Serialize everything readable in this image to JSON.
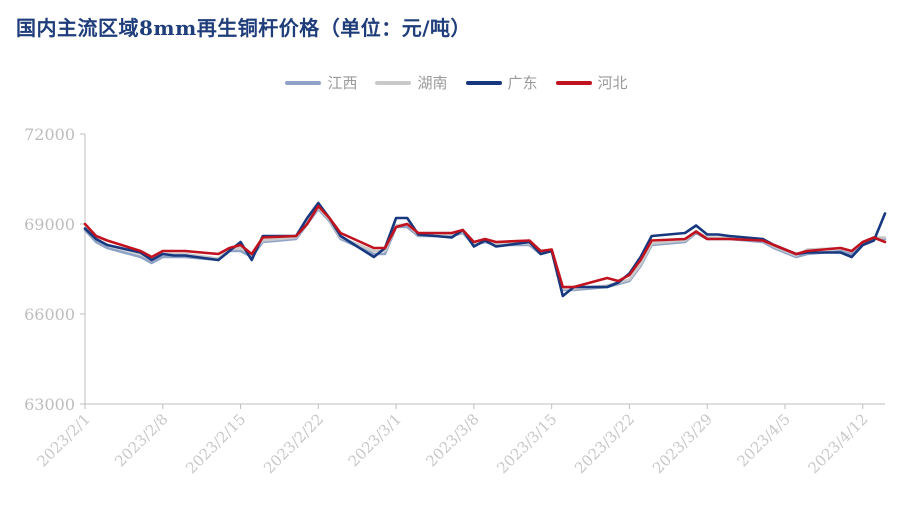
{
  "chart_data": {
    "type": "line",
    "title": "国内主流区域8mm再生铜杆价格（单位：元/吨）",
    "ylim": [
      63000,
      72000
    ],
    "yticks": [
      63000,
      66000,
      69000,
      72000
    ],
    "ytick_labels": [
      "63000",
      "66000",
      "69000",
      "72000"
    ],
    "xlim": [
      "2023/2/1",
      "2023/4/14"
    ],
    "xticks": [
      "2023/2/1",
      "2023/2/8",
      "2023/2/15",
      "2023/2/22",
      "2023/3/1",
      "2023/3/8",
      "2023/3/15",
      "2023/3/22",
      "2023/3/29",
      "2023/4/5",
      "2023/4/12"
    ],
    "legend": "top-center",
    "grid": false,
    "series": [
      {
        "name": "江西",
        "color": "#8fa3c6",
        "points": [
          [
            "2023/2/1",
            68800
          ],
          [
            "2023/2/2",
            68400
          ],
          [
            "2023/2/3",
            68200
          ],
          [
            "2023/2/6",
            67900
          ],
          [
            "2023/2/7",
            67700
          ],
          [
            "2023/2/8",
            67900
          ],
          [
            "2023/2/9",
            67900
          ],
          [
            "2023/2/10",
            67900
          ],
          [
            "2023/2/13",
            67800
          ],
          [
            "2023/2/14",
            68100
          ],
          [
            "2023/2/15",
            68100
          ],
          [
            "2023/2/16",
            67900
          ],
          [
            "2023/2/17",
            68400
          ],
          [
            "2023/2/20",
            68500
          ],
          [
            "2023/2/21",
            69000
          ],
          [
            "2023/2/22",
            69500
          ],
          [
            "2023/2/23",
            69100
          ],
          [
            "2023/2/24",
            68500
          ],
          [
            "2023/2/27",
            68000
          ],
          [
            "2023/2/28",
            68000
          ],
          [
            "2023/3/1",
            68900
          ],
          [
            "2023/3/2",
            68900
          ],
          [
            "2023/3/3",
            68600
          ],
          [
            "2023/3/6",
            68600
          ],
          [
            "2023/3/7",
            68700
          ],
          [
            "2023/3/8",
            68300
          ],
          [
            "2023/3/9",
            68400
          ],
          [
            "2023/3/10",
            68300
          ],
          [
            "2023/3/13",
            68300
          ],
          [
            "2023/3/14",
            68000
          ],
          [
            "2023/3/15",
            68100
          ],
          [
            "2023/3/16",
            66800
          ],
          [
            "2023/3/17",
            66800
          ],
          [
            "2023/3/20",
            66900
          ],
          [
            "2023/3/21",
            67000
          ],
          [
            "2023/3/22",
            67100
          ],
          [
            "2023/3/23",
            67600
          ],
          [
            "2023/3/24",
            68300
          ],
          [
            "2023/3/27",
            68400
          ],
          [
            "2023/3/28",
            68700
          ],
          [
            "2023/3/29",
            68500
          ],
          [
            "2023/3/30",
            68500
          ],
          [
            "2023/3/31",
            68500
          ],
          [
            "2023/4/3",
            68400
          ],
          [
            "2023/4/4",
            68200
          ],
          [
            "2023/4/6",
            67900
          ],
          [
            "2023/4/7",
            68000
          ],
          [
            "2023/4/10",
            68100
          ],
          [
            "2023/4/11",
            68000
          ],
          [
            "2023/4/12",
            68300
          ],
          [
            "2023/4/13",
            68500
          ],
          [
            "2023/4/14",
            68500
          ]
        ]
      },
      {
        "name": "湖南",
        "color": "#c9c9c9",
        "points": [
          [
            "2023/2/1",
            68850
          ],
          [
            "2023/2/2",
            68500
          ],
          [
            "2023/2/3",
            68300
          ],
          [
            "2023/2/6",
            68000
          ],
          [
            "2023/2/7",
            67800
          ],
          [
            "2023/2/8",
            68000
          ],
          [
            "2023/2/9",
            68000
          ],
          [
            "2023/2/10",
            68000
          ],
          [
            "2023/2/13",
            67850
          ],
          [
            "2023/2/14",
            68150
          ],
          [
            "2023/2/15",
            68200
          ],
          [
            "2023/2/16",
            68000
          ],
          [
            "2023/2/17",
            68450
          ],
          [
            "2023/2/20",
            68550
          ],
          [
            "2023/2/21",
            69100
          ],
          [
            "2023/2/22",
            69550
          ],
          [
            "2023/2/23",
            69150
          ],
          [
            "2023/2/24",
            68550
          ],
          [
            "2023/2/27",
            68100
          ],
          [
            "2023/2/28",
            68100
          ],
          [
            "2023/3/1",
            68950
          ],
          [
            "2023/3/2",
            69000
          ],
          [
            "2023/3/3",
            68650
          ],
          [
            "2023/3/6",
            68650
          ],
          [
            "2023/3/7",
            68750
          ],
          [
            "2023/3/8",
            68350
          ],
          [
            "2023/3/9",
            68450
          ],
          [
            "2023/3/10",
            68350
          ],
          [
            "2023/3/13",
            68350
          ],
          [
            "2023/3/14",
            68050
          ],
          [
            "2023/3/15",
            68150
          ],
          [
            "2023/3/16",
            66850
          ],
          [
            "2023/3/17",
            66850
          ],
          [
            "2023/3/20",
            66950
          ],
          [
            "2023/3/21",
            67050
          ],
          [
            "2023/3/22",
            67150
          ],
          [
            "2023/3/23",
            67650
          ],
          [
            "2023/3/24",
            68350
          ],
          [
            "2023/3/27",
            68450
          ],
          [
            "2023/3/28",
            68750
          ],
          [
            "2023/3/29",
            68550
          ],
          [
            "2023/3/30",
            68550
          ],
          [
            "2023/3/31",
            68550
          ],
          [
            "2023/4/3",
            68450
          ],
          [
            "2023/4/4",
            68250
          ],
          [
            "2023/4/6",
            67950
          ],
          [
            "2023/4/7",
            68150
          ],
          [
            "2023/4/10",
            68200
          ],
          [
            "2023/4/11",
            68100
          ],
          [
            "2023/4/12",
            68400
          ],
          [
            "2023/4/13",
            68550
          ],
          [
            "2023/4/14",
            68550
          ]
        ]
      },
      {
        "name": "广东",
        "color": "#17387e",
        "points": [
          [
            "2023/2/1",
            68850
          ],
          [
            "2023/2/2",
            68500
          ],
          [
            "2023/2/3",
            68300
          ],
          [
            "2023/2/6",
            68050
          ],
          [
            "2023/2/7",
            67800
          ],
          [
            "2023/2/8",
            68000
          ],
          [
            "2023/2/9",
            67950
          ],
          [
            "2023/2/10",
            67950
          ],
          [
            "2023/2/13",
            67800
          ],
          [
            "2023/2/14",
            68100
          ],
          [
            "2023/2/15",
            68400
          ],
          [
            "2023/2/16",
            67800
          ],
          [
            "2023/2/17",
            68600
          ],
          [
            "2023/2/20",
            68600
          ],
          [
            "2023/2/21",
            69200
          ],
          [
            "2023/2/22",
            69700
          ],
          [
            "2023/2/23",
            69200
          ],
          [
            "2023/2/24",
            68600
          ],
          [
            "2023/2/27",
            67900
          ],
          [
            "2023/2/28",
            68200
          ],
          [
            "2023/3/1",
            69200
          ],
          [
            "2023/3/2",
            69200
          ],
          [
            "2023/3/3",
            68650
          ],
          [
            "2023/3/6",
            68550
          ],
          [
            "2023/3/7",
            68800
          ],
          [
            "2023/3/8",
            68250
          ],
          [
            "2023/3/9",
            68450
          ],
          [
            "2023/3/10",
            68250
          ],
          [
            "2023/3/13",
            68400
          ],
          [
            "2023/3/14",
            68000
          ],
          [
            "2023/3/15",
            68100
          ],
          [
            "2023/3/16",
            66600
          ],
          [
            "2023/3/17",
            66900
          ],
          [
            "2023/3/20",
            66900
          ],
          [
            "2023/3/21",
            67050
          ],
          [
            "2023/3/22",
            67350
          ],
          [
            "2023/3/23",
            67900
          ],
          [
            "2023/3/24",
            68600
          ],
          [
            "2023/3/27",
            68700
          ],
          [
            "2023/3/28",
            68950
          ],
          [
            "2023/3/29",
            68650
          ],
          [
            "2023/3/30",
            68650
          ],
          [
            "2023/3/31",
            68600
          ],
          [
            "2023/4/3",
            68500
          ],
          [
            "2023/4/4",
            68300
          ],
          [
            "2023/4/6",
            68000
          ],
          [
            "2023/4/7",
            68050
          ],
          [
            "2023/4/10",
            68050
          ],
          [
            "2023/4/11",
            67900
          ],
          [
            "2023/4/12",
            68300
          ],
          [
            "2023/4/13",
            68450
          ],
          [
            "2023/4/14",
            69350
          ]
        ]
      },
      {
        "name": "河北",
        "color": "#c0121f",
        "points": [
          [
            "2023/2/1",
            69000
          ],
          [
            "2023/2/2",
            68600
          ],
          [
            "2023/2/3",
            68450
          ],
          [
            "2023/2/6",
            68100
          ],
          [
            "2023/2/7",
            67900
          ],
          [
            "2023/2/8",
            68100
          ],
          [
            "2023/2/9",
            68100
          ],
          [
            "2023/2/10",
            68100
          ],
          [
            "2023/2/13",
            68000
          ],
          [
            "2023/2/14",
            68200
          ],
          [
            "2023/2/15",
            68300
          ],
          [
            "2023/2/16",
            68000
          ],
          [
            "2023/2/17",
            68550
          ],
          [
            "2023/2/20",
            68600
          ],
          [
            "2023/2/21",
            69000
          ],
          [
            "2023/2/22",
            69600
          ],
          [
            "2023/2/23",
            69200
          ],
          [
            "2023/2/24",
            68700
          ],
          [
            "2023/2/27",
            68200
          ],
          [
            "2023/2/28",
            68200
          ],
          [
            "2023/3/1",
            68900
          ],
          [
            "2023/3/2",
            69000
          ],
          [
            "2023/3/3",
            68700
          ],
          [
            "2023/3/6",
            68700
          ],
          [
            "2023/3/7",
            68800
          ],
          [
            "2023/3/8",
            68400
          ],
          [
            "2023/3/9",
            68500
          ],
          [
            "2023/3/10",
            68400
          ],
          [
            "2023/3/13",
            68450
          ],
          [
            "2023/3/14",
            68100
          ],
          [
            "2023/3/15",
            68150
          ],
          [
            "2023/3/16",
            66900
          ],
          [
            "2023/3/17",
            66900
          ],
          [
            "2023/3/20",
            67200
          ],
          [
            "2023/3/21",
            67100
          ],
          [
            "2023/3/22",
            67300
          ],
          [
            "2023/3/23",
            67800
          ],
          [
            "2023/3/24",
            68450
          ],
          [
            "2023/3/27",
            68500
          ],
          [
            "2023/3/28",
            68750
          ],
          [
            "2023/3/29",
            68500
          ],
          [
            "2023/3/30",
            68500
          ],
          [
            "2023/3/31",
            68500
          ],
          [
            "2023/4/3",
            68450
          ],
          [
            "2023/4/4",
            68300
          ],
          [
            "2023/4/6",
            68000
          ],
          [
            "2023/4/7",
            68100
          ],
          [
            "2023/4/10",
            68200
          ],
          [
            "2023/4/11",
            68100
          ],
          [
            "2023/4/12",
            68400
          ],
          [
            "2023/4/13",
            68550
          ],
          [
            "2023/4/14",
            68400
          ]
        ]
      }
    ]
  }
}
